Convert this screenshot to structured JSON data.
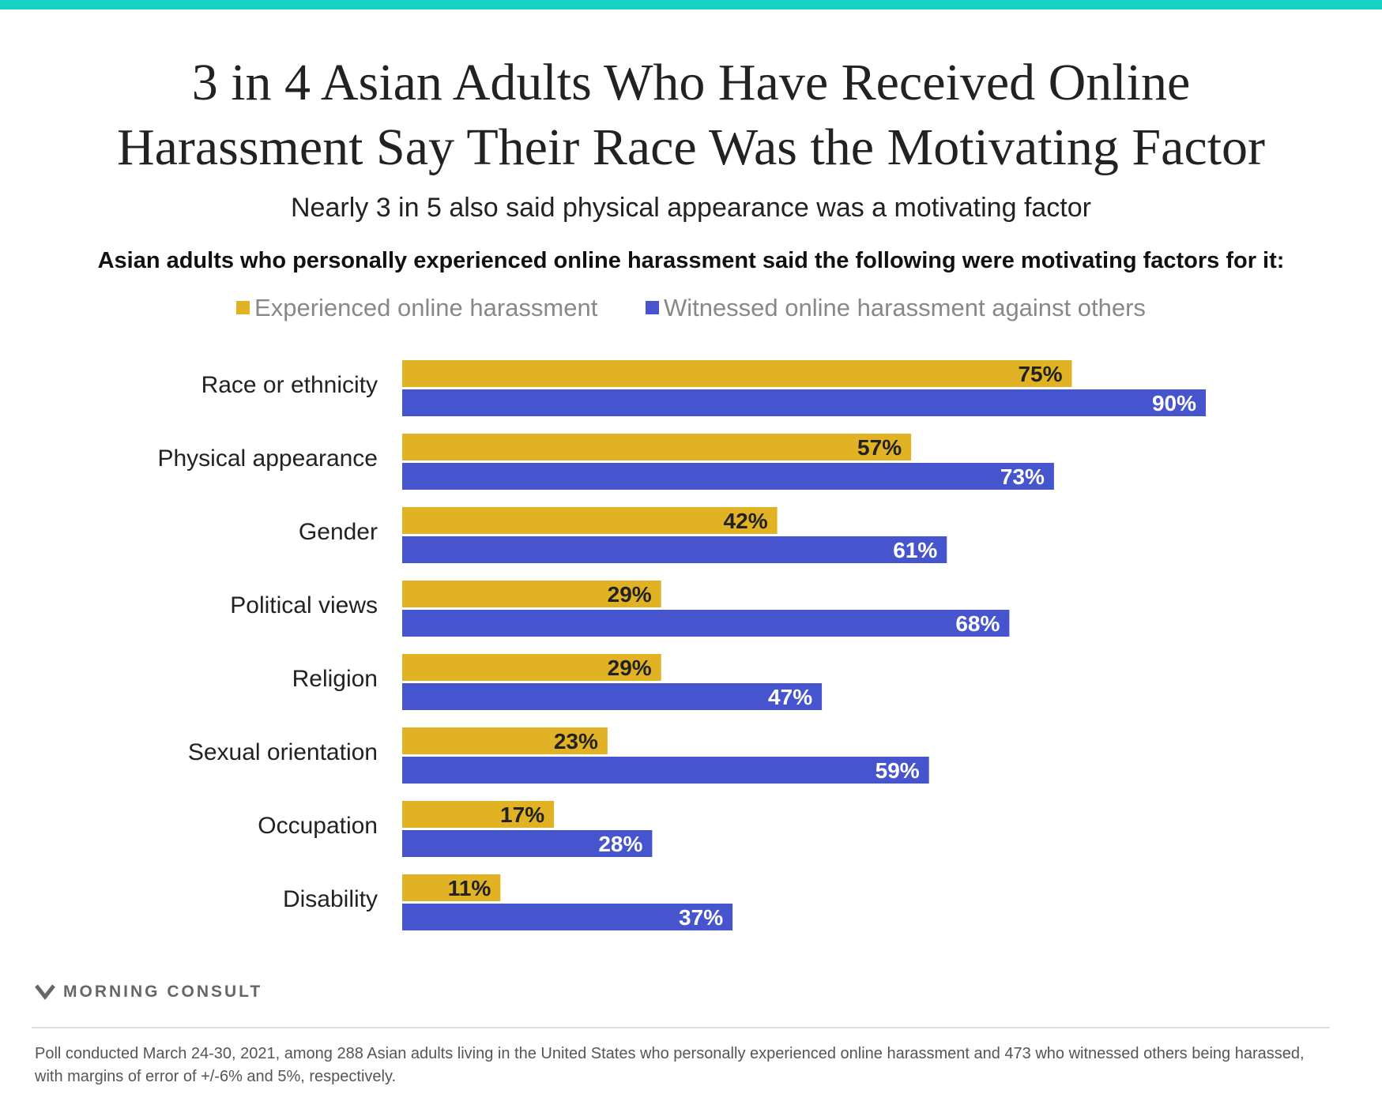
{
  "colors": {
    "stripe": "#17d3c7",
    "experienced": "#e2b225",
    "witnessed": "#4655cd"
  },
  "title_line1": "3 in 4 Asian Adults Who Have Received Online",
  "title_line2": "Harassment Say Their Race Was the Motivating Factor",
  "subtitle": "Nearly 3 in 5 also said physical appearance was a motivating factor",
  "question": "Asian adults who personally experienced online harassment said the following were motivating factors for it:",
  "legend": {
    "experienced": "Experienced online harassment",
    "witnessed": "Witnessed online harassment against others"
  },
  "chart_data": {
    "type": "bar",
    "orientation": "horizontal",
    "categories": [
      "Race or ethnicity",
      "Physical appearance",
      "Gender",
      "Political views",
      "Religion",
      "Sexual orientation",
      "Occupation",
      "Disability"
    ],
    "series": [
      {
        "name": "Experienced online harassment",
        "values": [
          75,
          57,
          42,
          29,
          29,
          23,
          17,
          11
        ]
      },
      {
        "name": "Witnessed online harassment against others",
        "values": [
          90,
          73,
          61,
          68,
          47,
          59,
          28,
          37
        ]
      }
    ],
    "value_suffix": "%",
    "xlim": [
      0,
      100
    ],
    "grid": false,
    "legend_position": "top"
  },
  "brand": "MORNING CONSULT",
  "footnote": "Poll conducted March 24-30, 2021, among 288 Asian adults living in the United States who personally experienced online harassment and 473 who witnessed others being harassed, with margins of error of +/-6% and 5%, respectively."
}
